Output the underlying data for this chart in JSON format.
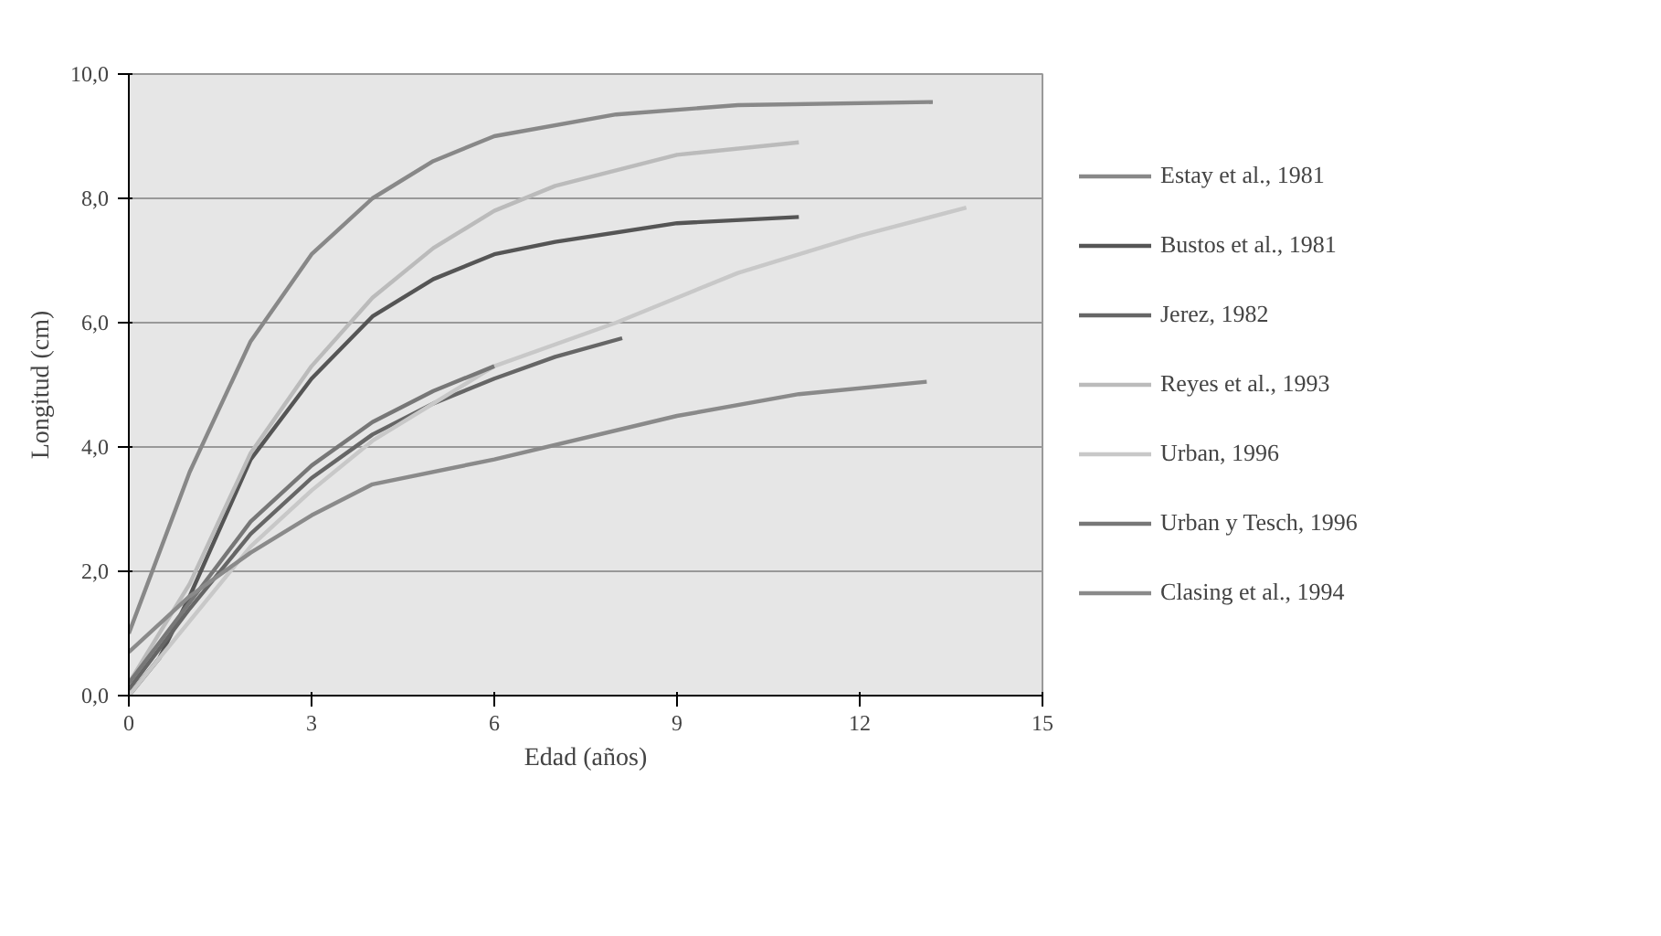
{
  "chart_data": {
    "type": "line",
    "xlabel": "Edad (años)",
    "ylabel": "Longitud (cm)",
    "xlim": [
      0,
      15
    ],
    "ylim": [
      0,
      10
    ],
    "xticks": [
      0,
      3,
      6,
      9,
      12,
      15
    ],
    "yticks": [
      {
        "value": 0,
        "label": "0,0"
      },
      {
        "value": 2,
        "label": "2,0"
      },
      {
        "value": 4,
        "label": "4,0"
      },
      {
        "value": 6,
        "label": "6,0"
      },
      {
        "value": 8,
        "label": "8,0"
      },
      {
        "value": 10,
        "label": "10,0"
      }
    ],
    "grid": "y",
    "legend": "right",
    "marker": "none",
    "line_style": "solid",
    "series": [
      {
        "name": "Estay et al., 1981",
        "color": "#888888",
        "x": [
          0,
          1,
          2,
          3,
          4,
          5,
          6,
          8,
          10,
          13.2
        ],
        "values": [
          1.0,
          3.6,
          5.7,
          7.1,
          8.0,
          8.6,
          9.0,
          9.35,
          9.5,
          9.55
        ]
      },
      {
        "name": "Bustos et al., 1981",
        "color": "#555555",
        "x": [
          0,
          0.5,
          1,
          2,
          3,
          4,
          5,
          6,
          7,
          9,
          11
        ],
        "values": [
          0,
          0.6,
          1.6,
          3.8,
          5.1,
          6.1,
          6.7,
          7.1,
          7.3,
          7.6,
          7.7
        ]
      },
      {
        "name": "Jerez, 1982",
        "color": "#666666",
        "x": [
          0,
          1,
          2,
          3,
          4,
          5,
          6,
          7,
          8.1
        ],
        "values": [
          0.1,
          1.4,
          2.6,
          3.5,
          4.2,
          4.7,
          5.1,
          5.45,
          5.75
        ]
      },
      {
        "name": "Reyes et al., 1993",
        "color": "#bbbbbb",
        "x": [
          0,
          1,
          2,
          3,
          4,
          5,
          6,
          7,
          9,
          11
        ],
        "values": [
          0.2,
          1.8,
          3.9,
          5.3,
          6.4,
          7.2,
          7.8,
          8.2,
          8.7,
          8.9
        ]
      },
      {
        "name": "Urban, 1996",
        "color": "#c8c8c8",
        "x": [
          0,
          1,
          2,
          3,
          4,
          6,
          8,
          10,
          12,
          13.75
        ],
        "values": [
          0,
          1.2,
          2.4,
          3.3,
          4.1,
          5.3,
          6.0,
          6.8,
          7.4,
          7.85
        ]
      },
      {
        "name": "Urban y Tesch, 1996",
        "color": "#777777",
        "x": [
          0,
          1,
          2,
          3,
          4,
          5,
          6
        ],
        "values": [
          0.2,
          1.5,
          2.8,
          3.7,
          4.4,
          4.9,
          5.3
        ]
      },
      {
        "name": "Clasing et al., 1994",
        "color": "#8a8a8a",
        "x": [
          0,
          1,
          2,
          3,
          4,
          6,
          9,
          11,
          13.1
        ],
        "values": [
          0.7,
          1.6,
          2.3,
          2.9,
          3.4,
          3.8,
          4.5,
          4.85,
          5.05
        ]
      }
    ]
  }
}
